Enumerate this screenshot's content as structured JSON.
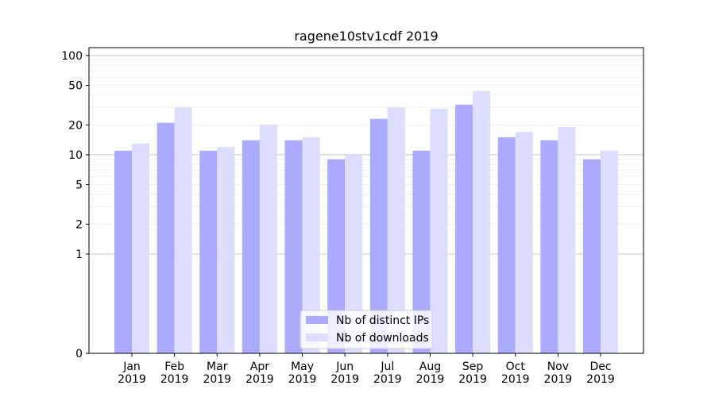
{
  "chart_data": {
    "type": "bar",
    "title": "ragene10stv1cdf 2019",
    "xlabel": "",
    "ylabel": "",
    "yscale": "symlog",
    "ylim": [
      0,
      120
    ],
    "yticks": [
      0,
      1,
      2,
      5,
      10,
      20,
      50,
      100
    ],
    "categories": [
      {
        "month": "Jan",
        "year": "2019"
      },
      {
        "month": "Feb",
        "year": "2019"
      },
      {
        "month": "Mar",
        "year": "2019"
      },
      {
        "month": "Apr",
        "year": "2019"
      },
      {
        "month": "May",
        "year": "2019"
      },
      {
        "month": "Jun",
        "year": "2019"
      },
      {
        "month": "Jul",
        "year": "2019"
      },
      {
        "month": "Aug",
        "year": "2019"
      },
      {
        "month": "Sep",
        "year": "2019"
      },
      {
        "month": "Oct",
        "year": "2019"
      },
      {
        "month": "Nov",
        "year": "2019"
      },
      {
        "month": "Dec",
        "year": "2019"
      }
    ],
    "series": [
      {
        "name": "Nb of distinct IPs",
        "color": "#aaaaff",
        "values": [
          11,
          21,
          11,
          14,
          14,
          9,
          23,
          11,
          32,
          15,
          14,
          9
        ]
      },
      {
        "name": "Nb of downloads",
        "color": "#ddddff",
        "values": [
          13,
          30,
          12,
          20,
          15,
          10,
          30,
          29,
          44,
          17,
          19,
          11
        ]
      }
    ],
    "legend": {
      "position": "bottom-center"
    },
    "grid": true
  }
}
